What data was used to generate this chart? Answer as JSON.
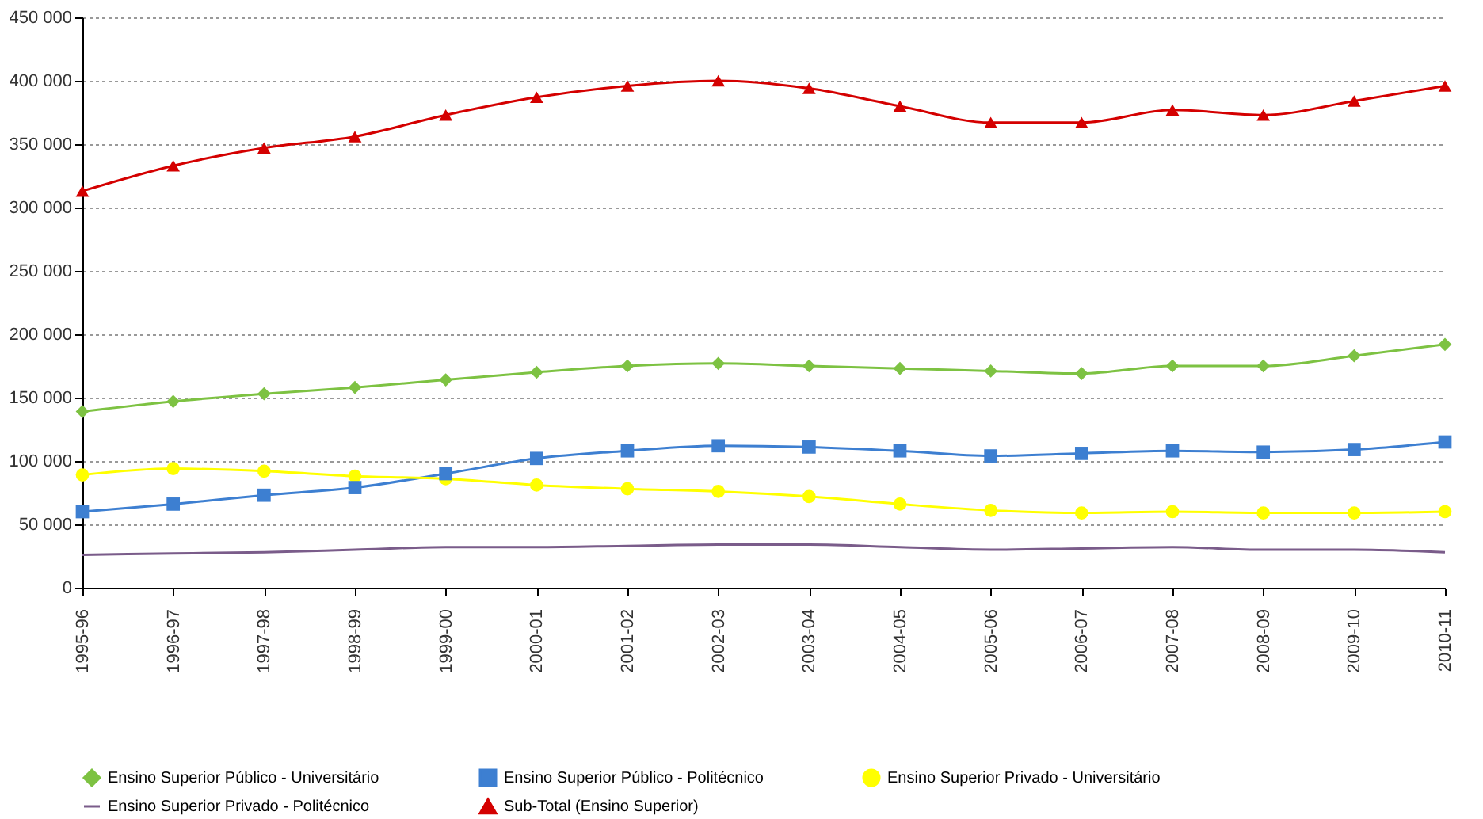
{
  "chart_data": {
    "type": "line",
    "categories": [
      "1995-96",
      "1996-97",
      "1997-98",
      "1998-99",
      "1999-00",
      "2000-01",
      "2001-02",
      "2002-03",
      "2003-04",
      "2004-05",
      "2005-06",
      "2006-07",
      "2007-08",
      "2008-09",
      "2009-10",
      "2010-11"
    ],
    "series": [
      {
        "name": "Ensino Superior Público - Universitário",
        "color": "#7dc242",
        "marker": "diamond",
        "values": [
          139000,
          147000,
          153000,
          158000,
          164000,
          170000,
          175000,
          177000,
          175000,
          173000,
          171000,
          169000,
          175000,
          175000,
          183000,
          192000
        ]
      },
      {
        "name": "Ensino Superior Público - Politécnico",
        "color": "#3d7fd1",
        "marker": "square",
        "values": [
          60000,
          66000,
          73000,
          79000,
          90000,
          102000,
          108000,
          112000,
          111000,
          108000,
          104000,
          106000,
          108000,
          107000,
          109000,
          115000
        ]
      },
      {
        "name": "Ensino Superior Privado - Universitário",
        "color": "#ffff00",
        "marker": "circle",
        "values": [
          89000,
          94000,
          92000,
          88000,
          86000,
          81000,
          78000,
          76000,
          72000,
          66000,
          61000,
          59000,
          60000,
          59000,
          59000,
          60000
        ]
      },
      {
        "name": "Ensino Superior Privado - Politécnico",
        "color": "#7a5c8a",
        "marker": "none",
        "values": [
          26000,
          27000,
          28000,
          30000,
          32000,
          32000,
          33000,
          34000,
          34000,
          32000,
          30000,
          31000,
          32000,
          30000,
          30000,
          28000
        ]
      },
      {
        "name": "Sub-Total (Ensino Superior)",
        "color": "#d40000",
        "marker": "triangle",
        "values": [
          313000,
          333000,
          347000,
          356000,
          373000,
          387000,
          396000,
          400000,
          394000,
          380000,
          367000,
          367000,
          377000,
          373000,
          384000,
          396000
        ]
      }
    ],
    "ylim": [
      0,
      450000
    ],
    "yticks": [
      0,
      {
        "value": 50000,
        "label": "50 000"
      },
      {
        "value": 100000,
        "label": "100 000"
      },
      {
        "value": 150000,
        "label": "150 000"
      },
      {
        "value": 200000,
        "label": "200 000"
      },
      {
        "value": 250000,
        "label": "250 000"
      },
      {
        "value": 300000,
        "label": "300 000"
      },
      {
        "value": 350000,
        "label": "350 000"
      },
      {
        "value": 400000,
        "label": "400 000"
      },
      {
        "value": 450000,
        "label": "450 000"
      }
    ],
    "grid": "y",
    "legend": "bottom",
    "line_style": "solid"
  }
}
